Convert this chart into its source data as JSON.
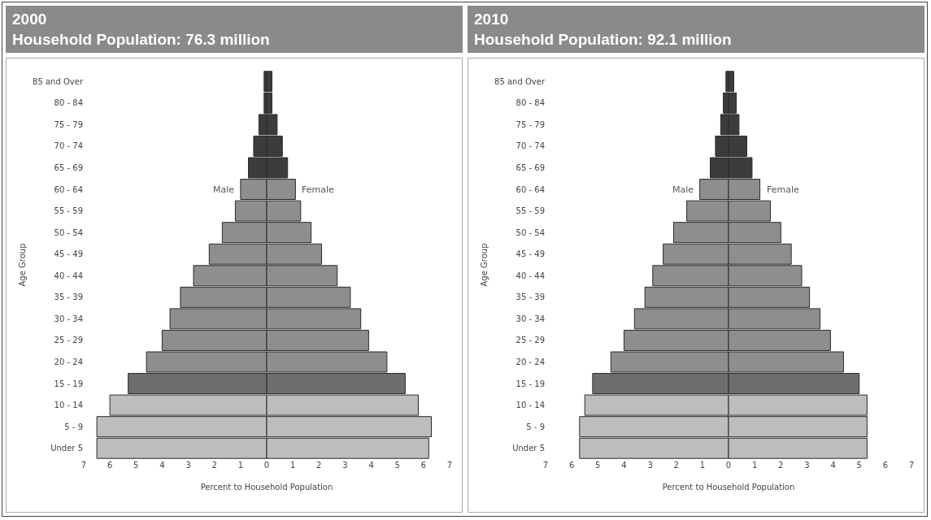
{
  "chart_data": [
    {
      "type": "bar",
      "orientation": "horizontal",
      "stacked": true,
      "title": "2000",
      "subtitle": "Household Population: 76.3 million",
      "xlabel": "Percent to Household Population",
      "ylabel": "Age Group",
      "categories": [
        "85 and Over",
        "80 - 84",
        "75 - 79",
        "70 - 74",
        "65 - 69",
        "60 - 64",
        "55 - 59",
        "50 - 54",
        "45 - 49",
        "40 - 44",
        "35 - 39",
        "30 - 34",
        "25 - 29",
        "20 - 24",
        "15 - 19",
        "10 - 14",
        "5 - 9",
        "Under 5"
      ],
      "series": [
        {
          "name": "Male",
          "colors": [
            "#3c3c3c",
            "#3c3c3c",
            "#3c3c3c",
            "#3c3c3c",
            "#3c3c3c",
            "#8e8e8e",
            "#8e8e8e",
            "#8e8e8e",
            "#8e8e8e",
            "#8e8e8e",
            "#8e8e8e",
            "#8e8e8e",
            "#8e8e8e",
            "#8e8e8e",
            "#6e6e6e",
            "#bdbdbd",
            "#bdbdbd",
            "#bdbdbd"
          ],
          "values": [
            -0.1,
            -0.1,
            -0.3,
            -0.5,
            -0.7,
            -1.0,
            -1.2,
            -1.7,
            -2.2,
            -2.8,
            -3.3,
            -3.7,
            -4.0,
            -4.6,
            -5.3,
            -6.0,
            -6.5,
            -6.5
          ]
        },
        {
          "name": "Female",
          "colors": [
            "#3c3c3c",
            "#3c3c3c",
            "#3c3c3c",
            "#3c3c3c",
            "#3c3c3c",
            "#8e8e8e",
            "#8e8e8e",
            "#8e8e8e",
            "#8e8e8e",
            "#8e8e8e",
            "#8e8e8e",
            "#8e8e8e",
            "#8e8e8e",
            "#8e8e8e",
            "#6e6e6e",
            "#bdbdbd",
            "#bdbdbd",
            "#bdbdbd"
          ],
          "values": [
            0.2,
            0.2,
            0.4,
            0.6,
            0.8,
            1.1,
            1.3,
            1.7,
            2.1,
            2.7,
            3.2,
            3.6,
            3.9,
            4.6,
            5.3,
            5.8,
            6.3,
            6.2
          ]
        }
      ],
      "xlim": [
        -7,
        7
      ],
      "xticks": [
        {
          "value": -7,
          "label": "7"
        },
        {
          "value": -6,
          "label": "6"
        },
        {
          "value": -5,
          "label": "5"
        },
        {
          "value": -4,
          "label": "4"
        },
        {
          "value": -3,
          "label": "3"
        },
        {
          "value": -2,
          "label": "2"
        },
        {
          "value": -1,
          "label": "1"
        },
        0,
        1,
        2,
        3,
        4,
        5,
        6,
        7
      ],
      "grid": false,
      "legend": false
    },
    {
      "type": "bar",
      "orientation": "horizontal",
      "stacked": true,
      "title": "2010",
      "subtitle": "Household Population: 92.1 million",
      "xlabel": "Percent to Household Population",
      "ylabel": "Age Group",
      "categories": [
        "85 and Over",
        "80 - 84",
        "75 - 79",
        "70 - 74",
        "65 - 69",
        "60 - 64",
        "55 - 59",
        "50 - 54",
        "45 - 49",
        "40 - 44",
        "35 - 39",
        "30 - 34",
        "25 - 29",
        "20 - 24",
        "15 - 19",
        "10 - 14",
        "5 - 9",
        "Under 5"
      ],
      "series": [
        {
          "name": "Male",
          "colors": [
            "#3c3c3c",
            "#3c3c3c",
            "#3c3c3c",
            "#3c3c3c",
            "#3c3c3c",
            "#8e8e8e",
            "#8e8e8e",
            "#8e8e8e",
            "#8e8e8e",
            "#8e8e8e",
            "#8e8e8e",
            "#8e8e8e",
            "#8e8e8e",
            "#8e8e8e",
            "#6e6e6e",
            "#bdbdbd",
            "#bdbdbd",
            "#bdbdbd"
          ],
          "values": [
            -0.1,
            -0.2,
            -0.3,
            -0.5,
            -0.7,
            -1.1,
            -1.6,
            -2.1,
            -2.5,
            -2.9,
            -3.2,
            -3.6,
            -4.0,
            -4.5,
            -5.2,
            -5.5,
            -5.7,
            -5.7
          ]
        },
        {
          "name": "Female",
          "colors": [
            "#3c3c3c",
            "#3c3c3c",
            "#3c3c3c",
            "#3c3c3c",
            "#3c3c3c",
            "#8e8e8e",
            "#8e8e8e",
            "#8e8e8e",
            "#8e8e8e",
            "#8e8e8e",
            "#8e8e8e",
            "#8e8e8e",
            "#8e8e8e",
            "#8e8e8e",
            "#6e6e6e",
            "#bdbdbd",
            "#bdbdbd",
            "#bdbdbd"
          ],
          "values": [
            0.2,
            0.3,
            0.4,
            0.7,
            0.9,
            1.2,
            1.6,
            2.0,
            2.4,
            2.8,
            3.1,
            3.5,
            3.9,
            4.4,
            5.0,
            5.3,
            5.3,
            5.3
          ]
        }
      ],
      "xlim": [
        -7,
        7
      ],
      "xticks": [
        {
          "value": -7,
          "label": "7"
        },
        {
          "value": -6,
          "label": "6"
        },
        {
          "value": -5,
          "label": "5"
        },
        {
          "value": -4,
          "label": "4"
        },
        {
          "value": -3,
          "label": "3"
        },
        {
          "value": -2,
          "label": "2"
        },
        {
          "value": -1,
          "label": "1"
        },
        0,
        1,
        2,
        3,
        4,
        5,
        6,
        7
      ],
      "grid": false,
      "legend": false
    }
  ]
}
